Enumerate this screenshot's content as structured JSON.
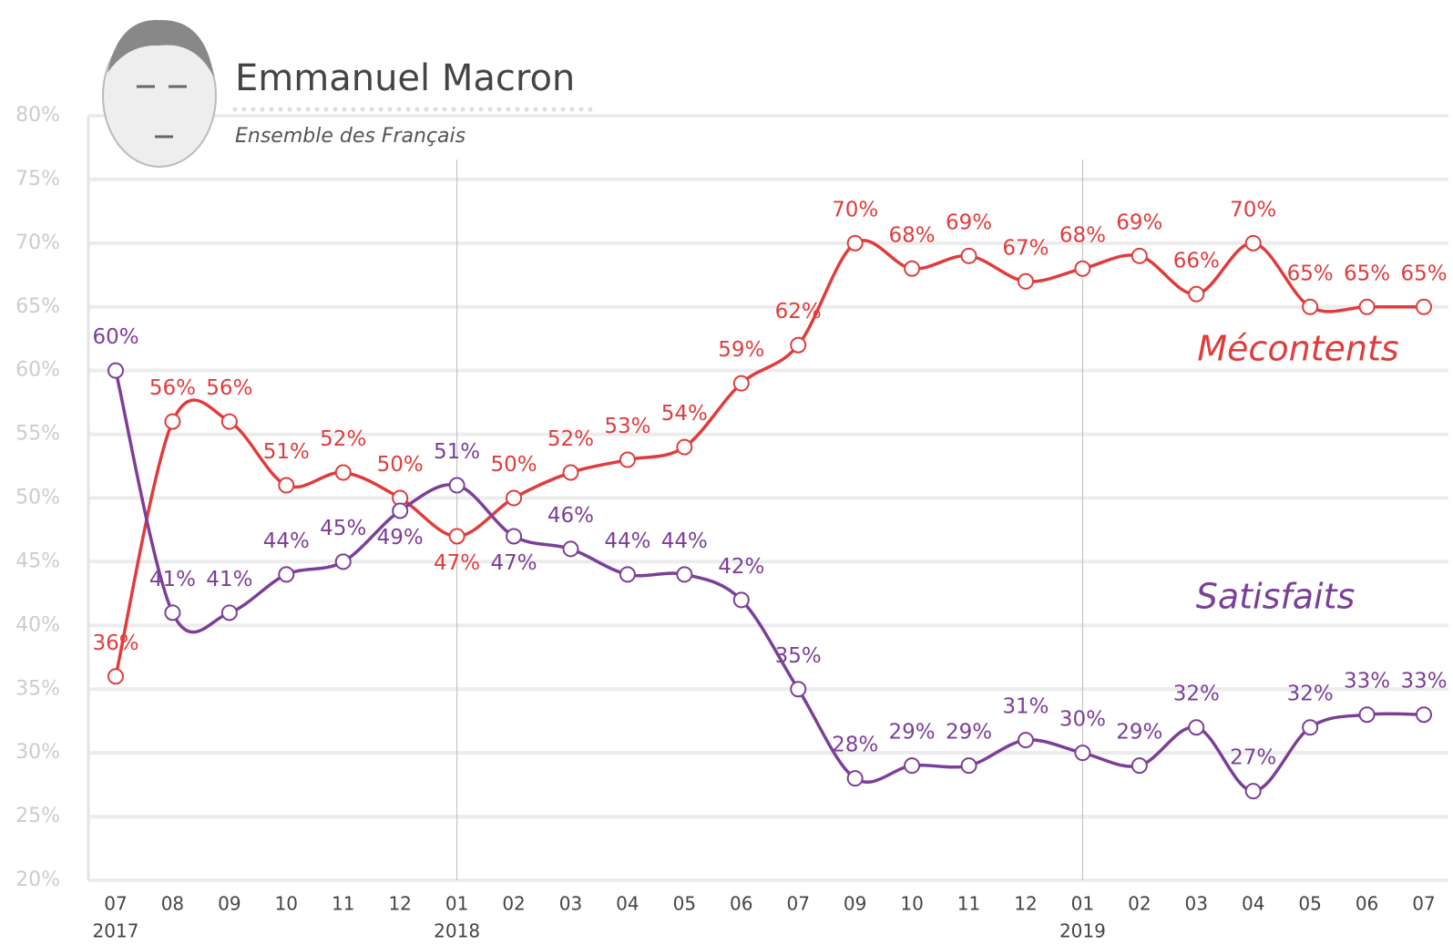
{
  "chart_data": {
    "type": "line",
    "title": "Emmanuel Macron",
    "subtitle": "Ensemble des Français",
    "categories": [
      "07",
      "08",
      "09",
      "10",
      "11",
      "12",
      "01",
      "02",
      "03",
      "04",
      "05",
      "06",
      "07",
      "09",
      "10",
      "11",
      "12",
      "01",
      "02",
      "03",
      "04",
      "05",
      "06",
      "07"
    ],
    "years": [
      "2017",
      null,
      null,
      null,
      null,
      null,
      "2018",
      null,
      null,
      null,
      null,
      null,
      null,
      null,
      null,
      null,
      null,
      "2019",
      null,
      null,
      null,
      null,
      null,
      null
    ],
    "series": [
      {
        "name": "Mécontents",
        "color": "#e03c3c",
        "values": [
          36,
          56,
          56,
          51,
          52,
          50,
          47,
          50,
          52,
          53,
          54,
          59,
          62,
          70,
          68,
          69,
          67,
          68,
          69,
          66,
          70,
          65,
          65,
          65
        ],
        "value_labels": [
          "36%",
          "56%",
          "56%",
          "51%",
          "52%",
          "50%",
          "47%",
          "50%",
          "52%",
          "53%",
          "54%",
          "59%",
          "62%",
          "70%",
          "68%",
          "69%",
          "67%",
          "68%",
          "69%",
          "66%",
          "70%",
          "65%",
          "65%",
          "65%"
        ]
      },
      {
        "name": "Satisfaits",
        "color": "#7b3f98",
        "values": [
          60,
          41,
          41,
          44,
          45,
          49,
          51,
          47,
          46,
          44,
          44,
          42,
          35,
          28,
          29,
          29,
          31,
          30,
          29,
          32,
          27,
          32,
          33,
          33
        ],
        "value_labels": [
          "60%",
          "41%",
          "41%",
          "44%",
          "45%",
          "49%",
          "51%",
          "47%",
          "46%",
          "44%",
          "44%",
          "42%",
          "35%",
          "28%",
          "29%",
          "29%",
          "31%",
          "30%",
          "29%",
          "32%",
          "27%",
          "32%",
          "33%",
          "33%"
        ]
      }
    ],
    "ylim": [
      20,
      80
    ],
    "yticks": [
      {
        "value": 20,
        "label": "20%"
      },
      {
        "value": 25,
        "label": "25%"
      },
      {
        "value": 30,
        "label": "30%"
      },
      {
        "value": 35,
        "label": "35%"
      },
      {
        "value": 40,
        "label": "40%"
      },
      {
        "value": 45,
        "label": "45%"
      },
      {
        "value": 50,
        "label": "50%"
      },
      {
        "value": 55,
        "label": "55%"
      },
      {
        "value": 60,
        "label": "60%"
      },
      {
        "value": 65,
        "label": "65%"
      },
      {
        "value": 70,
        "label": "70%"
      },
      {
        "value": 75,
        "label": "75%"
      },
      {
        "value": 80,
        "label": "80%"
      }
    ],
    "grid": true
  }
}
